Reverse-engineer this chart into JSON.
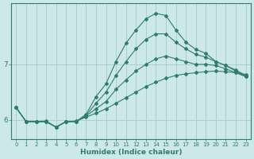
{
  "xlabel": "Humidex (Indice chaleur)",
  "background_color": "#cce8e8",
  "line_color": "#2e7d6e",
  "grid_color": "#aacfcf",
  "xlim": [
    -0.5,
    23.5
  ],
  "ylim": [
    5.65,
    8.1
  ],
  "yticks": [
    6,
    7
  ],
  "xticks": [
    0,
    1,
    2,
    3,
    4,
    5,
    6,
    7,
    8,
    9,
    10,
    11,
    12,
    13,
    14,
    15,
    16,
    17,
    18,
    19,
    20,
    21,
    22,
    23
  ],
  "series1_x": [
    0,
    1,
    2,
    3,
    4,
    5,
    6,
    7,
    8,
    9,
    10,
    11,
    12,
    13,
    14,
    15,
    16,
    17,
    18,
    19,
    20,
    21,
    22,
    23
  ],
  "series1_y": [
    6.22,
    5.97,
    5.97,
    5.98,
    5.87,
    5.97,
    5.98,
    6.05,
    6.12,
    6.2,
    6.3,
    6.4,
    6.5,
    6.6,
    6.68,
    6.75,
    6.8,
    6.83,
    6.85,
    6.87,
    6.88,
    6.87,
    6.85,
    6.82
  ],
  "series2_x": [
    0,
    1,
    2,
    3,
    4,
    5,
    6,
    7,
    8,
    9,
    10,
    11,
    12,
    13,
    14,
    15,
    16,
    17,
    18,
    19,
    20,
    21,
    22,
    23
  ],
  "series2_y": [
    6.22,
    5.97,
    5.97,
    5.97,
    5.87,
    5.97,
    5.97,
    6.07,
    6.2,
    6.33,
    6.55,
    6.72,
    6.88,
    7.0,
    7.1,
    7.15,
    7.1,
    7.05,
    7.0,
    7.0,
    6.98,
    6.92,
    6.85,
    6.78
  ],
  "series3_x": [
    0,
    1,
    2,
    3,
    4,
    5,
    6,
    7,
    8,
    9,
    10,
    11,
    12,
    13,
    14,
    15,
    16,
    17,
    18,
    19,
    20,
    21,
    22,
    23
  ],
  "series3_y": [
    6.22,
    5.97,
    5.97,
    5.97,
    5.87,
    5.97,
    5.97,
    6.08,
    6.3,
    6.5,
    6.8,
    7.05,
    7.28,
    7.45,
    7.55,
    7.55,
    7.4,
    7.28,
    7.18,
    7.13,
    7.05,
    6.98,
    6.9,
    6.8
  ],
  "series4_x": [
    0,
    1,
    2,
    3,
    4,
    5,
    6,
    7,
    8,
    9,
    10,
    11,
    12,
    13,
    14,
    15,
    16,
    17,
    18,
    19,
    20,
    21,
    22,
    23
  ],
  "series4_y": [
    6.22,
    5.97,
    5.97,
    5.97,
    5.87,
    5.97,
    5.97,
    6.1,
    6.42,
    6.65,
    7.05,
    7.38,
    7.62,
    7.82,
    7.92,
    7.88,
    7.62,
    7.4,
    7.27,
    7.2,
    7.05,
    6.98,
    6.88,
    6.78
  ]
}
